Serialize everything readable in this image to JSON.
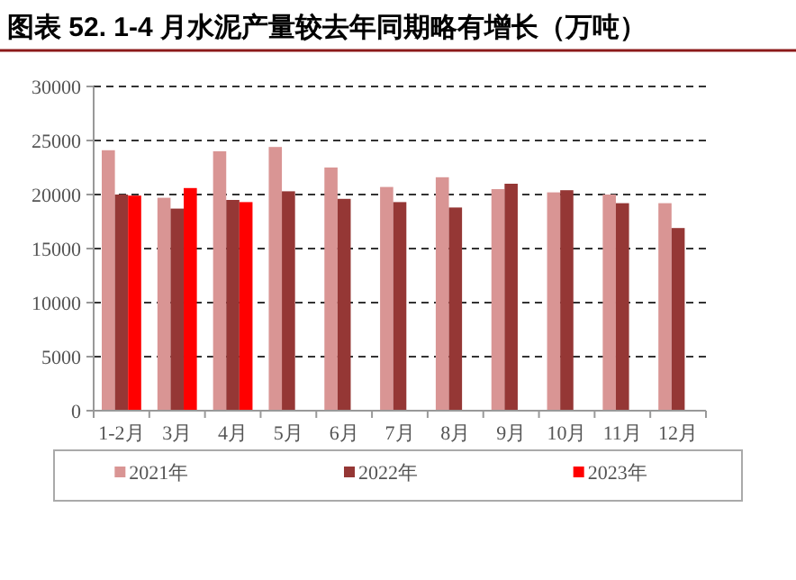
{
  "chart_data": {
    "type": "bar",
    "title": "图表 52. 1-4 月水泥产量较去年同期略有增长（万吨）",
    "categories": [
      "1-2月",
      "3月",
      "4月",
      "5月",
      "6月",
      "7月",
      "8月",
      "9月",
      "10月",
      "11月",
      "12月"
    ],
    "series": [
      {
        "name": "2021年",
        "color": "#d99594",
        "values": [
          24100,
          19700,
          24000,
          24400,
          22500,
          20700,
          21600,
          20500,
          20200,
          20000,
          19200
        ]
      },
      {
        "name": "2022年",
        "color": "#953735",
        "values": [
          20000,
          18700,
          19500,
          20300,
          19600,
          19300,
          18800,
          21000,
          20400,
          19200,
          16900
        ]
      },
      {
        "name": "2023年",
        "color": "#ff0000",
        "values": [
          19900,
          20600,
          19300,
          null,
          null,
          null,
          null,
          null,
          null,
          null,
          null
        ]
      }
    ],
    "ylim": [
      0,
      30000
    ],
    "yticks": [
      0,
      5000,
      10000,
      15000,
      20000,
      25000,
      30000
    ],
    "grid": "y",
    "legend": "bottom"
  }
}
